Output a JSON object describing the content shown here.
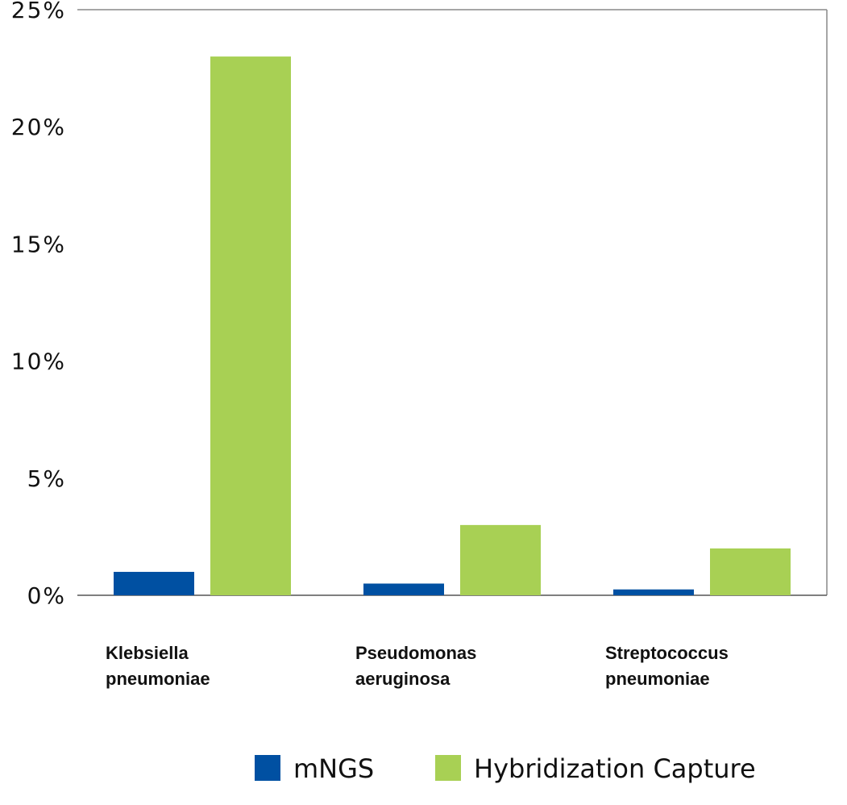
{
  "chart_data": {
    "type": "bar",
    "categories": [
      "Klebsiella pneumoniae",
      "Pseudomonas aeruginosa",
      "Streptococcus pneumoniae"
    ],
    "series": [
      {
        "name": "mNGS",
        "color": "#0050a2",
        "values": [
          1.0,
          0.5,
          0.25
        ]
      },
      {
        "name": "Hybridization Capture",
        "color": "#a8d054",
        "values": [
          23.0,
          3.0,
          2.0
        ]
      }
    ],
    "ylim": [
      0,
      25
    ],
    "yticks": [
      {
        "value": 0,
        "label": "0%"
      },
      {
        "value": 5,
        "label": "5%"
      },
      {
        "value": 10,
        "label": "10%"
      },
      {
        "value": 15,
        "label": "15%"
      },
      {
        "value": 20,
        "label": "20%"
      },
      {
        "value": 25,
        "label": "25%"
      }
    ],
    "grid": false,
    "legend": "bottom"
  }
}
